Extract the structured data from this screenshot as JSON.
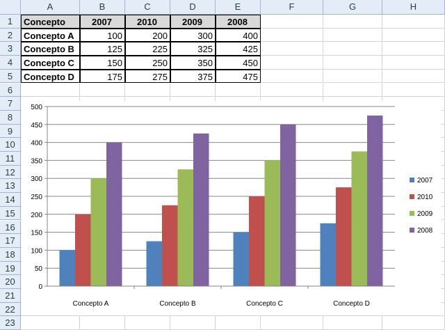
{
  "sheet": {
    "columns": [
      "A",
      "B",
      "C",
      "D",
      "E",
      "F",
      "G",
      "H"
    ],
    "rows": [
      "1",
      "2",
      "3",
      "4",
      "5",
      "6",
      "7",
      "8",
      "9",
      "10",
      "11",
      "12",
      "13",
      "14",
      "15",
      "16",
      "17",
      "18",
      "19",
      "20",
      "21",
      "22",
      "23"
    ],
    "table": {
      "headers": [
        "Concepto",
        "2007",
        "2010",
        "2009",
        "2008"
      ],
      "rows": [
        [
          "Concepto A",
          "100",
          "200",
          "300",
          "400"
        ],
        [
          "Concepto B",
          "125",
          "225",
          "325",
          "425"
        ],
        [
          "Concepto C",
          "150",
          "250",
          "350",
          "450"
        ],
        [
          "Concepto D",
          "175",
          "275",
          "375",
          "475"
        ]
      ]
    }
  },
  "chart_data": {
    "type": "bar",
    "categories": [
      "Concepto A",
      "Concepto B",
      "Concepto C",
      "Concepto D"
    ],
    "series": [
      {
        "name": "2007",
        "color": "#4f81bd",
        "values": [
          100,
          125,
          150,
          175
        ]
      },
      {
        "name": "2010",
        "color": "#c0504d",
        "values": [
          200,
          225,
          250,
          275
        ]
      },
      {
        "name": "2009",
        "color": "#9bbb59",
        "values": [
          300,
          325,
          350,
          375
        ]
      },
      {
        "name": "2008",
        "color": "#8064a2",
        "values": [
          400,
          425,
          450,
          475
        ]
      }
    ],
    "ylim": [
      0,
      500
    ],
    "yticks": [
      "0",
      "50",
      "100",
      "150",
      "200",
      "250",
      "300",
      "350",
      "400",
      "450",
      "500"
    ],
    "grid": true,
    "legend": "right"
  }
}
